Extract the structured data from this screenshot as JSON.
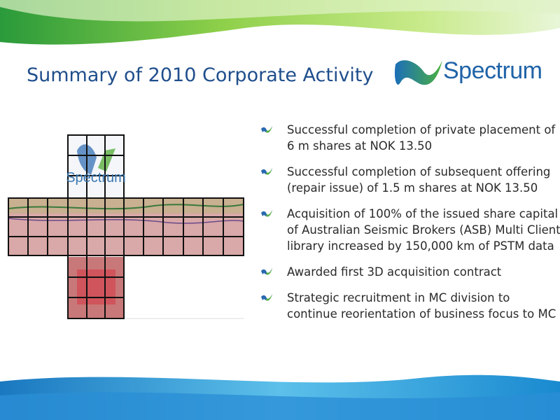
{
  "title": "Summary of 2010 Corporate Activity",
  "logo": "Spectrum",
  "image_label": "Spectrum",
  "bullets": [
    [
      "Successful completion of private placement of",
      "6 m shares at NOK 13.50"
    ],
    [
      "Successful completion of subsequent offering",
      "(repair issue) of 1.5 m shares at NOK 13.50"
    ],
    [
      "Acquisition of 100% of the issued share capital",
      "of Australian Seismic Brokers (ASB) Multi Client",
      "library increased by 150,000 km of PSTM data"
    ],
    [
      "Awarded first 3D acquisition contract"
    ],
    [
      "Strategic recruitment in MC division to",
      "continue reorientation of business focus to MC"
    ]
  ]
}
